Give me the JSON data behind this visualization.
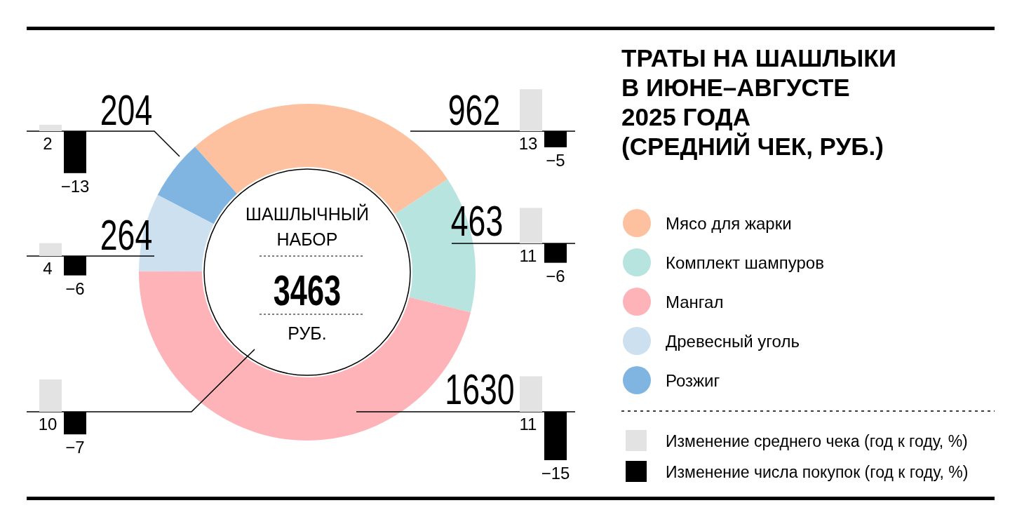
{
  "chart_data": [
    {
      "type": "donut",
      "title": "ТРАТЫ НА ШАШЛЫКИ\nВ ИЮНЕ–АВГУСТЕ\n2025 ГОДА\n(СРЕДНИЙ ЧЕК, РУБ.)",
      "categories": [
        "Мясо для жарки",
        "Комплект шампуров",
        "Мангал",
        "Древесный уголь",
        "Розжиг"
      ],
      "values": [
        962,
        463,
        1630,
        264,
        204
      ],
      "colors": [
        "#fdc19f",
        "#b8e4df",
        "#fdb3b8",
        "#cde0ef",
        "#7fb5e0"
      ],
      "data_labels": true,
      "legend": "right",
      "annotations": [
        "ШАШЛЫЧНЫЙ\nНАБОР",
        "3463",
        "РУБ."
      ]
    },
    {
      "type": "bar",
      "categories": [
        null
      ],
      "data_labels": true,
      "legend": "bottom right",
      "series": [
        {
          "name": "Изменение среднего чека (год к году, %)",
          "color": "#e3e3e3",
          "values": [
            13
          ]
        },
        {
          "name": "Изменение числа покупок (год к году, %)",
          "color": "#000000",
          "values": [
            -5
          ]
        }
      ]
    },
    {
      "type": "bar",
      "categories": [
        null
      ],
      "data_labels": true,
      "series": [
        {
          "color": "#e3e3e3",
          "values": [
            11
          ]
        },
        {
          "color": "#000000",
          "values": [
            -6
          ]
        }
      ]
    },
    {
      "type": "bar",
      "categories": [
        null
      ],
      "data_labels": true,
      "series": [
        {
          "color": "#e3e3e3",
          "values": [
            11
          ]
        },
        {
          "color": "#000000",
          "values": [
            -15
          ]
        }
      ]
    },
    {
      "type": "bar",
      "categories": [
        null
      ],
      "data_labels": true,
      "series": [
        {
          "color": "#e3e3e3",
          "values": [
            4
          ]
        },
        {
          "color": "#000000",
          "values": [
            -6
          ]
        }
      ]
    },
    {
      "type": "bar",
      "categories": [
        null
      ],
      "data_labels": true,
      "series": [
        {
          "color": "#e3e3e3",
          "values": [
            2
          ]
        },
        {
          "color": "#000000",
          "values": [
            -13
          ]
        }
      ]
    },
    {
      "type": "bar",
      "categories": [
        null
      ],
      "data_labels": true,
      "series": [
        {
          "color": "#e3e3e3",
          "values": [
            10
          ]
        },
        {
          "color": "#000000",
          "values": [
            -7
          ]
        }
      ]
    }
  ]
}
